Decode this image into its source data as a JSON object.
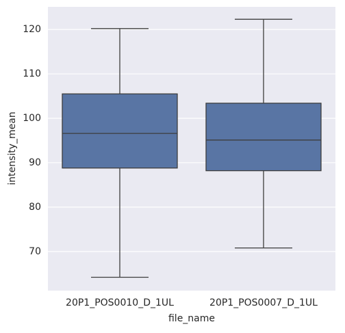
{
  "chart_data": {
    "type": "box",
    "x_label": "file_name",
    "y_label": "intensity_mean",
    "categories": [
      "20P1_POS0010_D_1UL",
      "20P1_POS0007_D_1UL"
    ],
    "boxes": [
      {
        "whislo": 64.2,
        "q1": 88.8,
        "med": 96.6,
        "q3": 105.5,
        "whishi": 120.2
      },
      {
        "whislo": 70.8,
        "q1": 88.2,
        "med": 95.1,
        "q3": 103.4,
        "whishi": 122.3
      }
    ],
    "color": "#5975a4",
    "ylim": [
      61.2,
      125.1
    ],
    "yticks": [
      70,
      80,
      90,
      100,
      110,
      120
    ],
    "grid": true
  }
}
